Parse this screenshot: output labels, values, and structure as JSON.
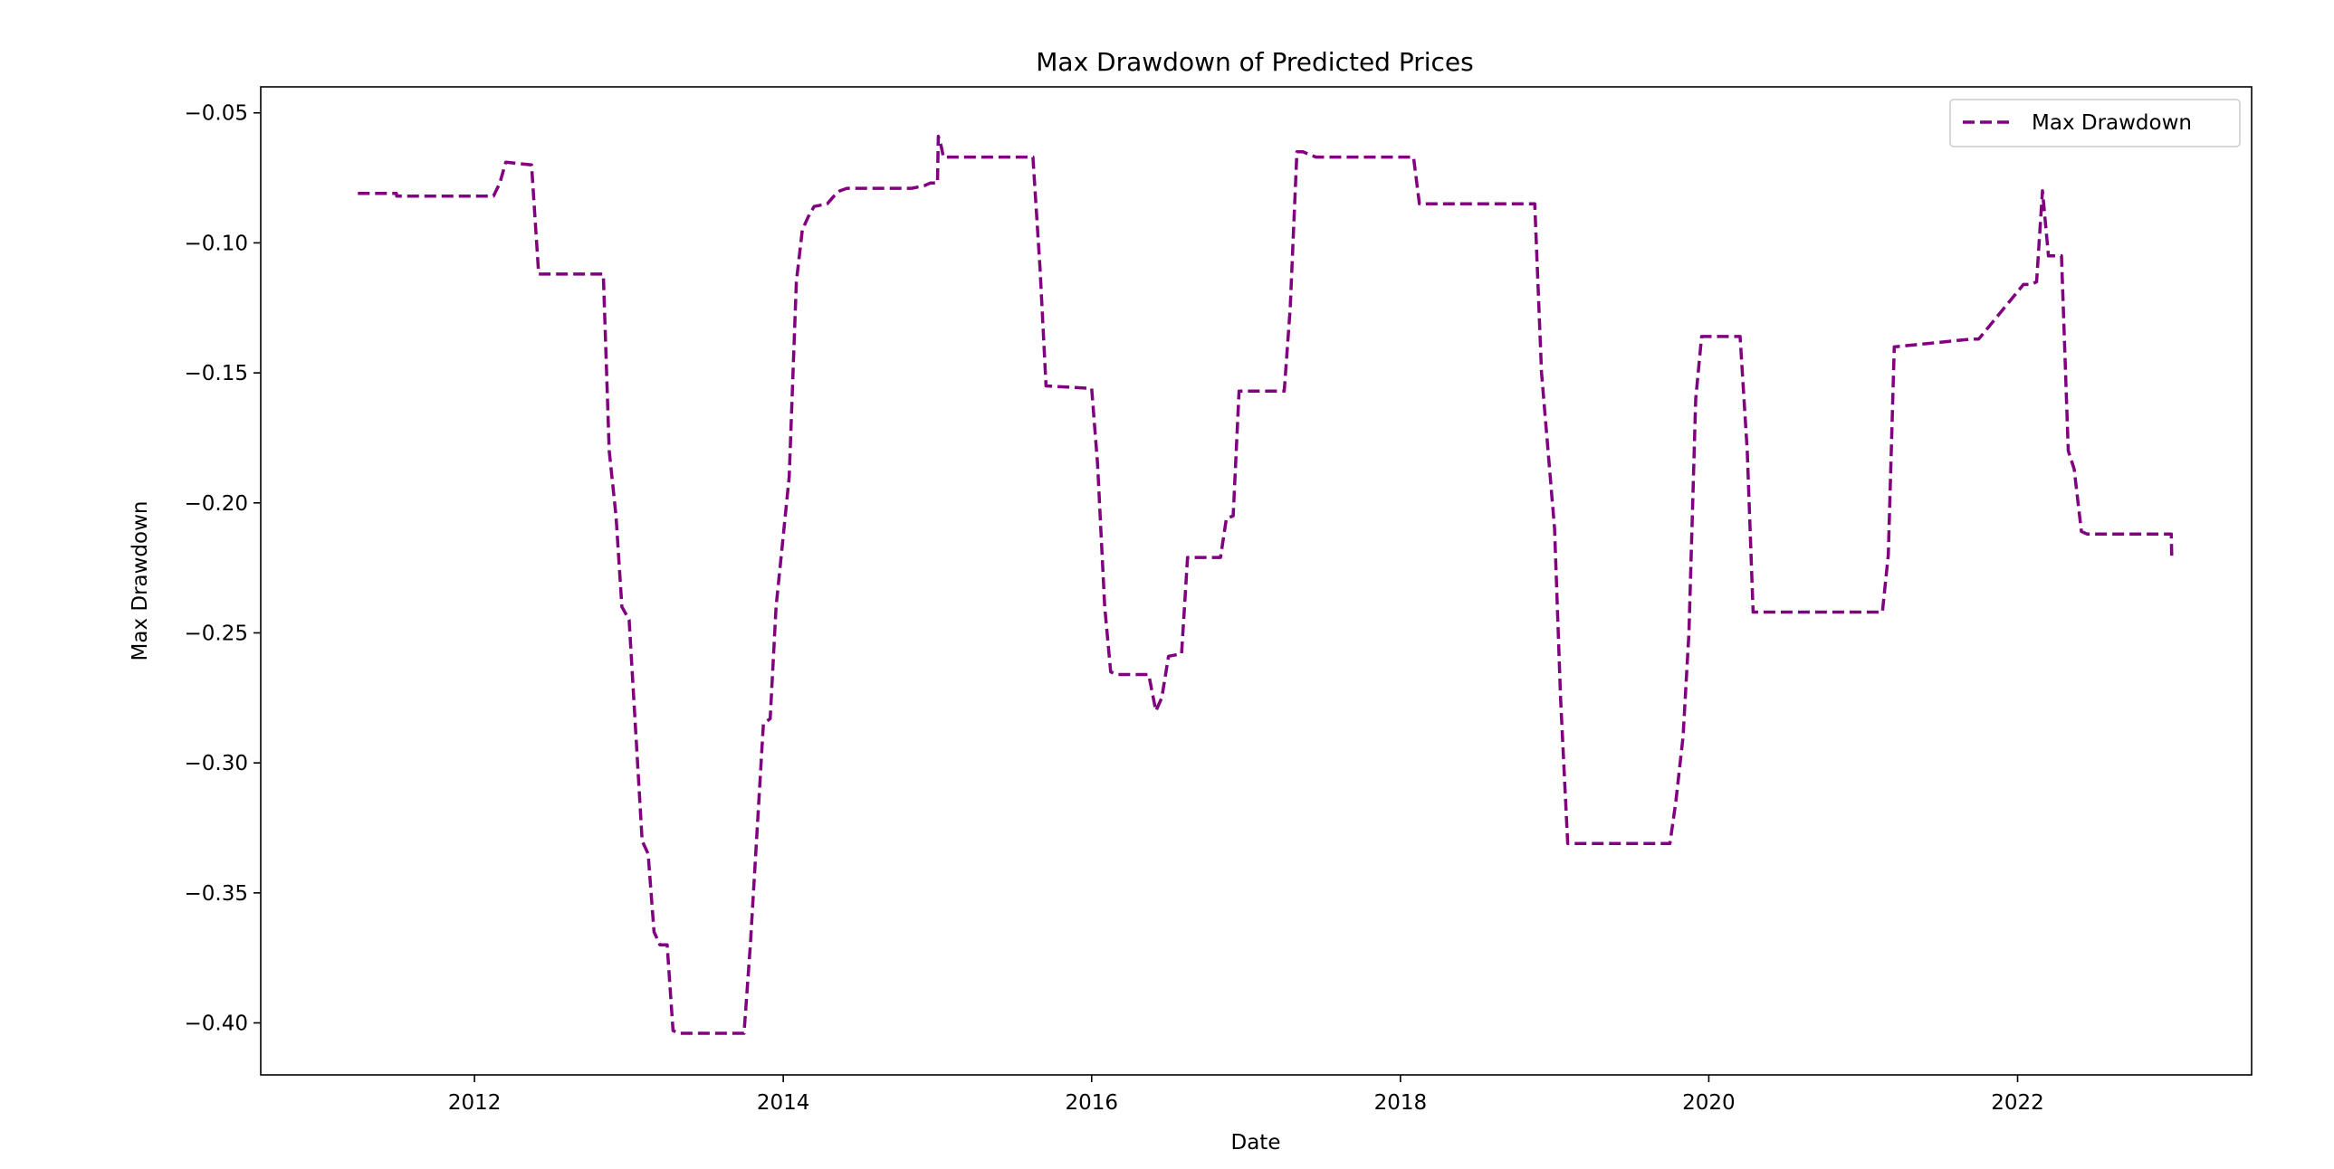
{
  "chart_data": {
    "type": "line",
    "title": "Max Drawdown of Predicted Prices",
    "xlabel": "Date",
    "ylabel": "Max Drawdown",
    "xlim": [
      "2010-08-13",
      "2023-07-09"
    ],
    "ylim": [
      -0.42,
      -0.04
    ],
    "x_ticks": [
      "2012-01-01",
      "2014-01-01",
      "2016-01-01",
      "2018-01-01",
      "2020-01-01",
      "2022-01-01"
    ],
    "x_tick_labels": [
      "2012",
      "2014",
      "2016",
      "2018",
      "2020",
      "2022"
    ],
    "y_ticks": [
      -0.05,
      -0.1,
      -0.15,
      -0.2,
      -0.25,
      -0.3,
      -0.35,
      -0.4
    ],
    "y_tick_labels": [
      "−0.05",
      "−0.10",
      "−0.15",
      "−0.20",
      "−0.25",
      "−0.30",
      "−0.35",
      "−0.40"
    ],
    "grid": false,
    "legend": {
      "position": "top-right",
      "entries": [
        "Max Drawdown"
      ]
    },
    "series": [
      {
        "name": "Max Drawdown",
        "color": "#800080",
        "line_style": "dashed",
        "x": [
          "2011-03-31",
          "2011-06-30",
          "2011-07-01",
          "2012-02-15",
          "2012-03-01",
          "2012-03-15",
          "2012-05-15",
          "2012-06-01",
          "2012-11-01",
          "2012-11-15",
          "2012-12-01",
          "2012-12-15",
          "2013-01-01",
          "2013-02-01",
          "2013-02-15",
          "2013-03-01",
          "2013-03-15",
          "2013-04-01",
          "2013-04-15",
          "2013-05-01",
          "2013-09-30",
          "2013-10-15",
          "2013-11-15",
          "2013-12-01",
          "2013-12-15",
          "2014-01-15",
          "2014-02-01",
          "2014-02-15",
          "2014-03-01",
          "2014-03-15",
          "2014-04-15",
          "2014-05-01",
          "2014-05-15",
          "2014-06-01",
          "2014-11-01",
          "2014-12-01",
          "2014-12-15",
          "2015-01-01",
          "2015-01-03",
          "2015-01-10",
          "2015-01-15",
          "2015-08-01",
          "2015-08-15",
          "2015-09-01",
          "2015-09-15",
          "2016-01-01",
          "2016-01-15",
          "2016-02-01",
          "2016-02-15",
          "2016-03-01",
          "2016-05-15",
          "2016-06-01",
          "2016-06-15",
          "2016-07-01",
          "2016-08-01",
          "2016-08-15",
          "2016-11-01",
          "2016-11-15",
          "2016-12-01",
          "2016-12-15",
          "2017-01-01",
          "2017-04-01",
          "2017-04-15",
          "2017-05-01",
          "2017-05-15",
          "2017-06-15",
          "2017-07-01",
          "2018-02-01",
          "2018-02-15",
          "2018-11-15",
          "2018-12-01",
          "2019-01-01",
          "2019-01-15",
          "2019-02-01",
          "2019-10-01",
          "2019-10-15",
          "2019-11-01",
          "2019-11-15",
          "2019-12-01",
          "2019-12-15",
          "2020-03-15",
          "2020-04-01",
          "2020-04-15",
          "2021-02-15",
          "2021-03-01",
          "2021-03-15",
          "2021-09-15",
          "2021-10-01",
          "2022-01-15",
          "2022-02-01",
          "2022-02-15",
          "2022-03-01",
          "2022-03-15",
          "2022-04-15",
          "2022-05-01",
          "2022-05-15",
          "2022-06-01",
          "2022-06-15",
          "2022-12-31",
          "2023-01-01"
        ],
        "y": [
          -0.081,
          -0.081,
          -0.082,
          -0.082,
          -0.077,
          -0.069,
          -0.07,
          -0.112,
          -0.112,
          -0.18,
          -0.205,
          -0.24,
          -0.245,
          -0.33,
          -0.335,
          -0.365,
          -0.37,
          -0.37,
          -0.403,
          -0.404,
          -0.404,
          -0.37,
          -0.285,
          -0.283,
          -0.24,
          -0.19,
          -0.115,
          -0.095,
          -0.09,
          -0.086,
          -0.085,
          -0.082,
          -0.08,
          -0.079,
          -0.079,
          -0.078,
          -0.077,
          -0.077,
          -0.059,
          -0.063,
          -0.067,
          -0.067,
          -0.067,
          -0.11,
          -0.155,
          -0.156,
          -0.185,
          -0.24,
          -0.265,
          -0.266,
          -0.266,
          -0.28,
          -0.275,
          -0.259,
          -0.258,
          -0.221,
          -0.221,
          -0.206,
          -0.205,
          -0.157,
          -0.157,
          -0.157,
          -0.125,
          -0.065,
          -0.065,
          -0.067,
          -0.067,
          -0.067,
          -0.085,
          -0.085,
          -0.15,
          -0.21,
          -0.275,
          -0.331,
          -0.331,
          -0.315,
          -0.29,
          -0.25,
          -0.16,
          -0.136,
          -0.136,
          -0.18,
          -0.242,
          -0.242,
          -0.22,
          -0.14,
          -0.137,
          -0.137,
          -0.116,
          -0.116,
          -0.115,
          -0.08,
          -0.105,
          -0.105,
          -0.18,
          -0.187,
          -0.211,
          -0.212,
          -0.212,
          -0.221
        ]
      }
    ]
  }
}
